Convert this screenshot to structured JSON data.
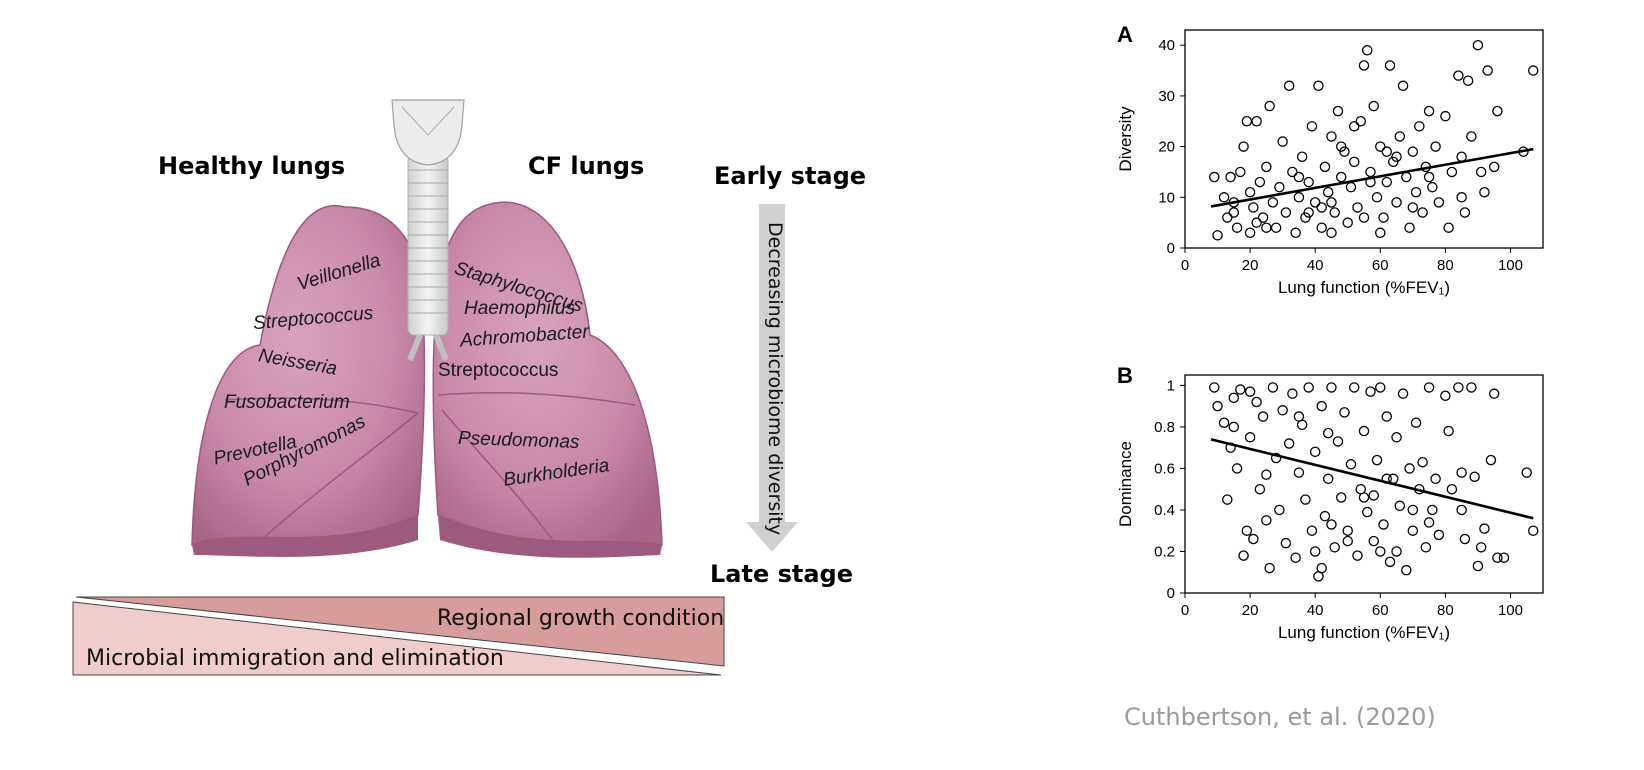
{
  "diagram": {
    "healthy_heading": "Healthy lungs",
    "cf_heading": "CF lungs",
    "early_stage": "Early stage",
    "late_stage": "Late stage",
    "arrow_label": "Decreasing microbiome diversity",
    "healthy_species": [
      "Veillonella",
      "Streptococcus",
      "Neisseria",
      "Fusobacterium",
      "Prevotella",
      "Porphyromonas"
    ],
    "cf_species": [
      "Staphylococcus",
      "Haemophilus",
      "Achromobacter",
      "Streptococcus",
      "Pseudomonas",
      "Burkholderia"
    ],
    "wedge_top_label": "Regional growth condition",
    "wedge_bottom_label": "Microbial immigration and elimination",
    "colors": {
      "lung": "#c98aaa",
      "lung_dark": "#9c5a7e",
      "wedge_top": "#d79c9c",
      "wedge_bottom": "#f0cccc",
      "arrow": "#d0d0d0"
    }
  },
  "chart_data": [
    {
      "panel": "A",
      "type": "scatter",
      "xlabel": "Lung function (%FEV₁)",
      "ylabel": "Diversity",
      "xlim": [
        0,
        110
      ],
      "ylim": [
        0,
        43
      ],
      "xticks": [
        "0",
        "20",
        "40",
        "60",
        "80",
        "100"
      ],
      "yticks": [
        "0",
        "10",
        "20",
        "30",
        "40"
      ],
      "trendline": [
        [
          8,
          8.2
        ],
        [
          107,
          19.5
        ]
      ],
      "points": [
        [
          9,
          14
        ],
        [
          10,
          2.5
        ],
        [
          12,
          10
        ],
        [
          13,
          6
        ],
        [
          14,
          14
        ],
        [
          15,
          7
        ],
        [
          16,
          4
        ],
        [
          17,
          15
        ],
        [
          18,
          20
        ],
        [
          19,
          25
        ],
        [
          20,
          3
        ],
        [
          20,
          11
        ],
        [
          21,
          8
        ],
        [
          22,
          25
        ],
        [
          22,
          5
        ],
        [
          23,
          13
        ],
        [
          24,
          6
        ],
        [
          25,
          16
        ],
        [
          26,
          28
        ],
        [
          27,
          9
        ],
        [
          28,
          4
        ],
        [
          29,
          12
        ],
        [
          30,
          21
        ],
        [
          31,
          7
        ],
        [
          32,
          32
        ],
        [
          33,
          15
        ],
        [
          34,
          3
        ],
        [
          35,
          10
        ],
        [
          36,
          18
        ],
        [
          37,
          6
        ],
        [
          38,
          13
        ],
        [
          39,
          24
        ],
        [
          40,
          9
        ],
        [
          41,
          32
        ],
        [
          42,
          4
        ],
        [
          43,
          16
        ],
        [
          44,
          11
        ],
        [
          45,
          22
        ],
        [
          46,
          7
        ],
        [
          47,
          27
        ],
        [
          48,
          14
        ],
        [
          49,
          19
        ],
        [
          50,
          5
        ],
        [
          51,
          12
        ],
        [
          52,
          17
        ],
        [
          53,
          8
        ],
        [
          54,
          25
        ],
        [
          55,
          36
        ],
        [
          56,
          39
        ],
        [
          57,
          15
        ],
        [
          58,
          28
        ],
        [
          59,
          10
        ],
        [
          60,
          20
        ],
        [
          61,
          6
        ],
        [
          62,
          13
        ],
        [
          63,
          36
        ],
        [
          64,
          17
        ],
        [
          65,
          9
        ],
        [
          66,
          22
        ],
        [
          67,
          32
        ],
        [
          68,
          14
        ],
        [
          69,
          4
        ],
        [
          70,
          19
        ],
        [
          71,
          11
        ],
        [
          72,
          24
        ],
        [
          73,
          7
        ],
        [
          74,
          16
        ],
        [
          75,
          27
        ],
        [
          76,
          12
        ],
        [
          77,
          20
        ],
        [
          78,
          9
        ],
        [
          80,
          26
        ],
        [
          81,
          4
        ],
        [
          82,
          15
        ],
        [
          84,
          34
        ],
        [
          85,
          18
        ],
        [
          86,
          7
        ],
        [
          87,
          33
        ],
        [
          88,
          22
        ],
        [
          90,
          40
        ],
        [
          91,
          15
        ],
        [
          92,
          11
        ],
        [
          93,
          35
        ],
        [
          96,
          27
        ],
        [
          104,
          19
        ],
        [
          107,
          35
        ],
        [
          15,
          9
        ],
        [
          25,
          4
        ],
        [
          35,
          14
        ],
        [
          45,
          9
        ],
        [
          55,
          6
        ],
        [
          65,
          18
        ],
        [
          75,
          14
        ],
        [
          85,
          10
        ],
        [
          95,
          16
        ],
        [
          45,
          3
        ],
        [
          60,
          3
        ],
        [
          70,
          8
        ],
        [
          48,
          20
        ],
        [
          52,
          24
        ],
        [
          57,
          13
        ],
        [
          62,
          19
        ],
        [
          42,
          8
        ],
        [
          38,
          7
        ]
      ]
    },
    {
      "panel": "B",
      "type": "scatter",
      "xlabel": "Lung function (%FEV₁)",
      "ylabel": "Dominance",
      "xlim": [
        0,
        110
      ],
      "ylim": [
        0,
        1.05
      ],
      "xticks": [
        "0",
        "20",
        "40",
        "60",
        "80",
        "100"
      ],
      "yticks": [
        "0",
        "0.2",
        "0.4",
        "0.6",
        "0.8",
        "1"
      ],
      "trendline": [
        [
          8,
          0.74
        ],
        [
          107,
          0.36
        ]
      ],
      "points": [
        [
          9,
          0.99
        ],
        [
          10,
          0.9
        ],
        [
          12,
          0.82
        ],
        [
          13,
          0.45
        ],
        [
          14,
          0.7
        ],
        [
          15,
          0.94
        ],
        [
          16,
          0.6
        ],
        [
          17,
          0.98
        ],
        [
          18,
          0.18
        ],
        [
          19,
          0.3
        ],
        [
          20,
          0.97
        ],
        [
          20,
          0.75
        ],
        [
          21,
          0.26
        ],
        [
          22,
          0.92
        ],
        [
          23,
          0.5
        ],
        [
          24,
          0.85
        ],
        [
          25,
          0.35
        ],
        [
          26,
          0.12
        ],
        [
          27,
          0.99
        ],
        [
          28,
          0.65
        ],
        [
          29,
          0.4
        ],
        [
          30,
          0.88
        ],
        [
          31,
          0.24
        ],
        [
          32,
          0.72
        ],
        [
          33,
          0.96
        ],
        [
          34,
          0.17
        ],
        [
          35,
          0.58
        ],
        [
          36,
          0.81
        ],
        [
          37,
          0.45
        ],
        [
          38,
          0.99
        ],
        [
          39,
          0.3
        ],
        [
          40,
          0.68
        ],
        [
          41,
          0.08
        ],
        [
          42,
          0.9
        ],
        [
          43,
          0.37
        ],
        [
          44,
          0.55
        ],
        [
          45,
          0.99
        ],
        [
          46,
          0.22
        ],
        [
          47,
          0.73
        ],
        [
          48,
          0.46
        ],
        [
          49,
          0.87
        ],
        [
          50,
          0.3
        ],
        [
          51,
          0.62
        ],
        [
          52,
          0.99
        ],
        [
          53,
          0.18
        ],
        [
          54,
          0.5
        ],
        [
          55,
          0.78
        ],
        [
          56,
          0.39
        ],
        [
          57,
          0.97
        ],
        [
          58,
          0.25
        ],
        [
          59,
          0.64
        ],
        [
          60,
          0.99
        ],
        [
          61,
          0.33
        ],
        [
          62,
          0.85
        ],
        [
          63,
          0.15
        ],
        [
          64,
          0.55
        ],
        [
          65,
          0.75
        ],
        [
          66,
          0.42
        ],
        [
          67,
          0.96
        ],
        [
          68,
          0.11
        ],
        [
          69,
          0.6
        ],
        [
          70,
          0.3
        ],
        [
          71,
          0.82
        ],
        [
          72,
          0.5
        ],
        [
          73,
          0.63
        ],
        [
          74,
          0.22
        ],
        [
          75,
          0.99
        ],
        [
          76,
          0.4
        ],
        [
          77,
          0.55
        ],
        [
          78,
          0.28
        ],
        [
          80,
          0.95
        ],
        [
          81,
          0.78
        ],
        [
          82,
          0.5
        ],
        [
          84,
          0.99
        ],
        [
          85,
          0.4
        ],
        [
          86,
          0.26
        ],
        [
          88,
          0.99
        ],
        [
          89,
          0.56
        ],
        [
          90,
          0.13
        ],
        [
          91,
          0.22
        ],
        [
          92,
          0.31
        ],
        [
          94,
          0.64
        ],
        [
          95,
          0.96
        ],
        [
          96,
          0.17
        ],
        [
          98,
          0.17
        ],
        [
          105,
          0.58
        ],
        [
          107,
          0.3
        ],
        [
          15,
          0.8
        ],
        [
          25,
          0.57
        ],
        [
          35,
          0.85
        ],
        [
          45,
          0.33
        ],
        [
          55,
          0.46
        ],
        [
          65,
          0.2
        ],
        [
          75,
          0.34
        ],
        [
          85,
          0.58
        ],
        [
          40,
          0.2
        ],
        [
          50,
          0.25
        ],
        [
          60,
          0.2
        ],
        [
          70,
          0.4
        ],
        [
          42,
          0.12
        ],
        [
          58,
          0.47
        ],
        [
          62,
          0.55
        ],
        [
          44,
          0.77
        ]
      ]
    }
  ],
  "citation": "Cuthbertson, et al. (2020)"
}
